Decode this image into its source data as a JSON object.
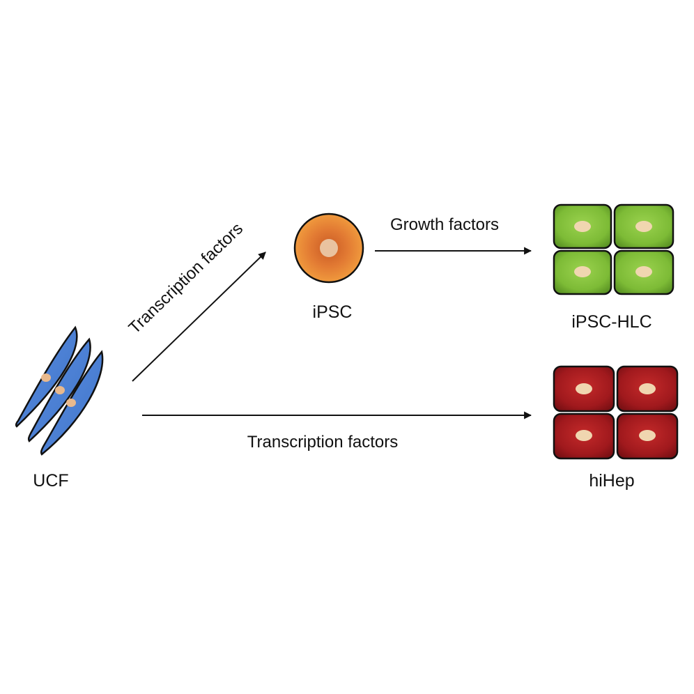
{
  "nodes": {
    "ucf": {
      "label": "UCF",
      "color": "#4a7fd0",
      "nucleus_color": "#e9b98d"
    },
    "ipsc": {
      "label": "iPSC",
      "color": "#e07a2e",
      "nucleus_color": "#e9c3a0"
    },
    "ipsc_hlc": {
      "label": "iPSC-HLC",
      "color": "#7fbf3a",
      "nucleus_color": "#f0d6b0"
    },
    "hihep": {
      "label": "hiHep",
      "color": "#a51a1f",
      "nucleus_color": "#f0d6b0"
    }
  },
  "edges": {
    "ucf_to_ipsc": {
      "label": "Transcription factors"
    },
    "ipsc_to_hlc": {
      "label": "Growth factors"
    },
    "ucf_to_hihep": {
      "label": "Transcription factors"
    }
  }
}
